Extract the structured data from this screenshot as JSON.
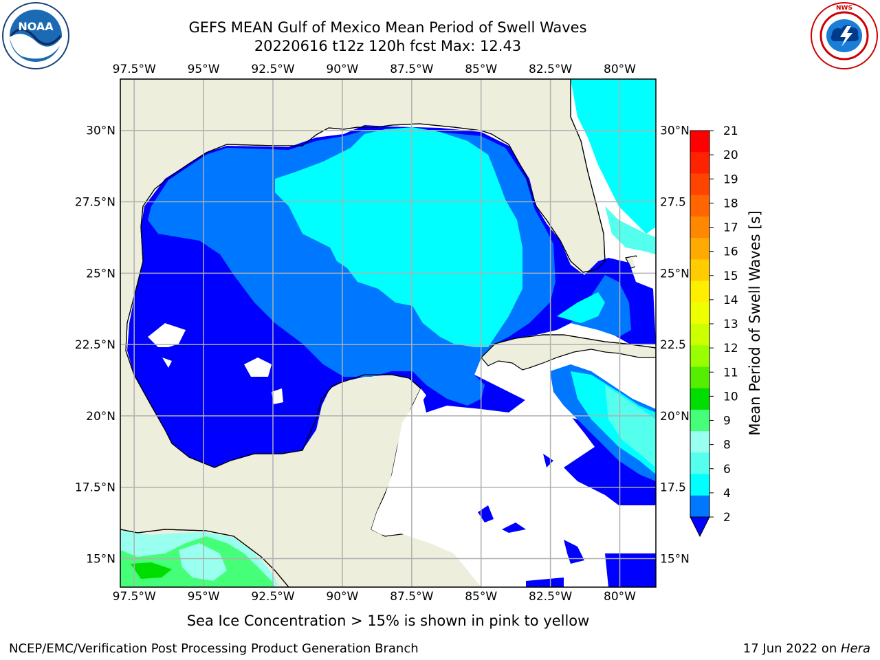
{
  "title_line1": "GEFS MEAN Gulf of Mexico Mean Period of Swell Waves",
  "title_line2": "20220616 t12z 120h fcst   Max: 12.43",
  "lon_ticks": [
    "97.5°W",
    "95°W",
    "92.5°W",
    "90°W",
    "87.5°W",
    "85°W",
    "82.5°W",
    "80°W"
  ],
  "lat_ticks": [
    "30°N",
    "27.5°N",
    "25°N",
    "22.5°N",
    "20°N",
    "17.5°N",
    "15°N"
  ],
  "right_lat_ticks": [
    "30°N",
    "27.5",
    "25°N",
    "22.5",
    "20°N",
    "17.5",
    "15°N"
  ],
  "colorbar": {
    "label": "Mean Period of Swell Waves [s]",
    "ticks": [
      "21",
      "20",
      "19",
      "18",
      "17",
      "16",
      "15",
      "14",
      "13",
      "12",
      "11",
      "10",
      "9",
      "8",
      "6",
      "4",
      "2"
    ],
    "colors": [
      "#ff0000",
      "#ff2200",
      "#ff4400",
      "#ff6600",
      "#ff8800",
      "#ffaa00",
      "#ffcc00",
      "#ffee00",
      "#eeff00",
      "#ccff00",
      "#99ff00",
      "#55ee00",
      "#00dd00",
      "#44ff77",
      "#99ffee",
      "#55ffee",
      "#00ffff",
      "#0077ff"
    ],
    "extend_color": "#0000ff"
  },
  "footnote": "Sea Ice Concentration > 15% is shown in pink to yellow",
  "credit_left": "NCEP/EMC/Verification Post Processing Product Generation Branch",
  "credit_date": "17 Jun 2022 on ",
  "credit_machine": "Hera",
  "logos": {
    "left": "noaa-logo",
    "left_text": "NOAA",
    "right": "nws-logo",
    "right_text": "NATIONAL WEATHER SERVICE"
  },
  "colors": {
    "land": "#eeeedd",
    "swell_blue_dark": "#0000ff",
    "swell_blue": "#0077ff",
    "swell_cyan": "#00ffff",
    "swell_light_cyan": "#55ffee",
    "swell_green": "#44ff77",
    "grid": "#b0b0b0"
  }
}
